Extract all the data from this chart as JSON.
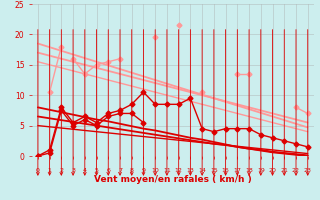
{
  "x": [
    0,
    1,
    2,
    3,
    4,
    5,
    6,
    7,
    8,
    9,
    10,
    11,
    12,
    13,
    14,
    15,
    16,
    17,
    18,
    19,
    20,
    21,
    22,
    23
  ],
  "series": [
    {
      "name": "pink_scatter1",
      "color": "#FF9999",
      "linewidth": 1.0,
      "marker": "D",
      "markersize": 2.5,
      "y": [
        null,
        10.5,
        18.0,
        null,
        null,
        null,
        null,
        null,
        null,
        null,
        19.5,
        null,
        21.5,
        null,
        null,
        null,
        null,
        null,
        null,
        null,
        null,
        null,
        null,
        null
      ]
    },
    {
      "name": "pink_scatter2",
      "color": "#FF9999",
      "linewidth": 1.0,
      "marker": "D",
      "markersize": 2.5,
      "y": [
        null,
        null,
        null,
        16.0,
        13.5,
        15.0,
        15.5,
        16.0,
        null,
        null,
        null,
        null,
        null,
        null,
        10.5,
        null,
        null,
        13.5,
        13.5,
        null,
        null,
        null,
        8.0,
        7.0
      ]
    },
    {
      "name": "pink_trend1",
      "color": "#FF9999",
      "linewidth": 1.3,
      "marker": null,
      "markersize": 0,
      "y": [
        18.5,
        17.9,
        17.3,
        16.7,
        16.1,
        15.5,
        14.9,
        14.3,
        13.7,
        13.1,
        12.5,
        11.9,
        11.3,
        10.7,
        10.1,
        9.5,
        8.9,
        8.3,
        7.7,
        7.1,
        6.5,
        5.9,
        5.3,
        4.7
      ]
    },
    {
      "name": "pink_trend2",
      "color": "#FF9999",
      "linewidth": 1.3,
      "marker": null,
      "markersize": 0,
      "y": [
        17.0,
        16.5,
        16.0,
        15.5,
        15.0,
        14.5,
        14.0,
        13.5,
        13.0,
        12.5,
        12.0,
        11.5,
        11.0,
        10.5,
        10.0,
        9.5,
        9.0,
        8.5,
        8.0,
        7.5,
        7.0,
        6.5,
        6.0,
        5.5
      ]
    },
    {
      "name": "pink_trend3",
      "color": "#FF9999",
      "linewidth": 1.0,
      "marker": null,
      "markersize": 0,
      "y": [
        15.5,
        15.0,
        14.5,
        14.0,
        13.5,
        13.0,
        12.5,
        12.0,
        11.5,
        11.0,
        10.5,
        10.0,
        9.5,
        9.0,
        8.5,
        8.0,
        7.5,
        7.0,
        6.5,
        6.0,
        5.5,
        5.0,
        4.5,
        4.0
      ]
    },
    {
      "name": "red_scatter1",
      "color": "#DD0000",
      "linewidth": 1.0,
      "marker": "D",
      "markersize": 2.5,
      "y": [
        0.0,
        1.0,
        8.0,
        5.5,
        6.5,
        5.5,
        7.0,
        7.5,
        8.5,
        10.5,
        8.5,
        8.5,
        8.5,
        9.5,
        4.5,
        4.0,
        4.5,
        4.5,
        4.5,
        3.5,
        3.0,
        2.5,
        2.0,
        1.5
      ]
    },
    {
      "name": "red_scatter2",
      "color": "#DD0000",
      "linewidth": 1.0,
      "marker": "D",
      "markersize": 2.5,
      "y": [
        0.0,
        0.5,
        7.5,
        5.0,
        6.0,
        5.0,
        6.5,
        7.0,
        7.0,
        5.5,
        null,
        null,
        null,
        null,
        null,
        null,
        null,
        null,
        null,
        null,
        null,
        null,
        null,
        null
      ]
    },
    {
      "name": "red_trend1",
      "color": "#DD0000",
      "linewidth": 1.3,
      "marker": null,
      "markersize": 0,
      "y": [
        8.0,
        7.6,
        7.2,
        6.8,
        6.4,
        6.0,
        5.7,
        5.3,
        4.9,
        4.5,
        4.2,
        3.8,
        3.4,
        3.0,
        2.7,
        2.3,
        1.9,
        1.5,
        1.2,
        0.9,
        0.6,
        0.4,
        0.2,
        0.0
      ]
    },
    {
      "name": "red_trend2",
      "color": "#DD0000",
      "linewidth": 1.3,
      "marker": null,
      "markersize": 0,
      "y": [
        6.5,
        6.2,
        5.9,
        5.6,
        5.3,
        5.0,
        4.7,
        4.4,
        4.1,
        3.8,
        3.5,
        3.2,
        2.9,
        2.6,
        2.3,
        2.0,
        1.8,
        1.5,
        1.2,
        1.0,
        0.7,
        0.5,
        0.3,
        0.1
      ]
    },
    {
      "name": "red_trend3",
      "color": "#DD0000",
      "linewidth": 1.0,
      "marker": null,
      "markersize": 0,
      "y": [
        5.0,
        4.8,
        4.6,
        4.4,
        4.2,
        4.0,
        3.8,
        3.6,
        3.4,
        3.2,
        3.0,
        2.8,
        2.6,
        2.4,
        2.2,
        2.0,
        1.8,
        1.6,
        1.4,
        1.2,
        1.0,
        0.8,
        0.6,
        0.4
      ]
    }
  ],
  "xlabel": "Vent moyen/en rafales ( km/h )",
  "xlabel_color": "#DD0000",
  "xlim": [
    -0.5,
    23.5
  ],
  "ylim": [
    0,
    25
  ],
  "yticks": [
    0,
    5,
    10,
    15,
    20,
    25
  ],
  "xticks": [
    0,
    1,
    2,
    3,
    4,
    5,
    6,
    7,
    8,
    9,
    10,
    11,
    12,
    13,
    14,
    15,
    16,
    17,
    18,
    19,
    20,
    21,
    22,
    23
  ],
  "bg_color": "#CCEEEE",
  "grid_color": "#AAAAAA",
  "tick_color": "#DD0000",
  "arrow_color": "#DD0000"
}
